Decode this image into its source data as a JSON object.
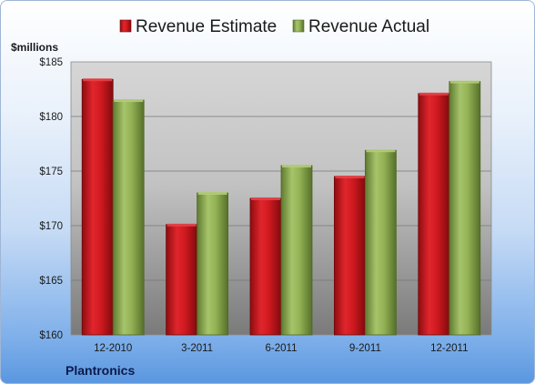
{
  "chart_data": {
    "type": "bar",
    "categories": [
      "12-2010",
      "3-2011",
      "6-2011",
      "9-2011",
      "12-2011"
    ],
    "series": [
      {
        "name": "Revenue Estimate",
        "values": [
          183.4,
          170.1,
          172.5,
          174.5,
          182.1
        ]
      },
      {
        "name": "Revenue Actual",
        "values": [
          181.5,
          173.0,
          175.5,
          176.9,
          183.2
        ]
      }
    ],
    "unit_label": "$millions",
    "ylim": [
      160,
      185
    ],
    "yticks": [
      160,
      165,
      170,
      175,
      180,
      185
    ],
    "ytick_labels": [
      "$160",
      "$165",
      "$170",
      "$175",
      "$180",
      "$185"
    ],
    "footer_label": "Plantronics",
    "legend_position": "top-center",
    "grid": true,
    "colors": {
      "estimate": "#c8141a",
      "actual": "#8fae4e"
    }
  }
}
